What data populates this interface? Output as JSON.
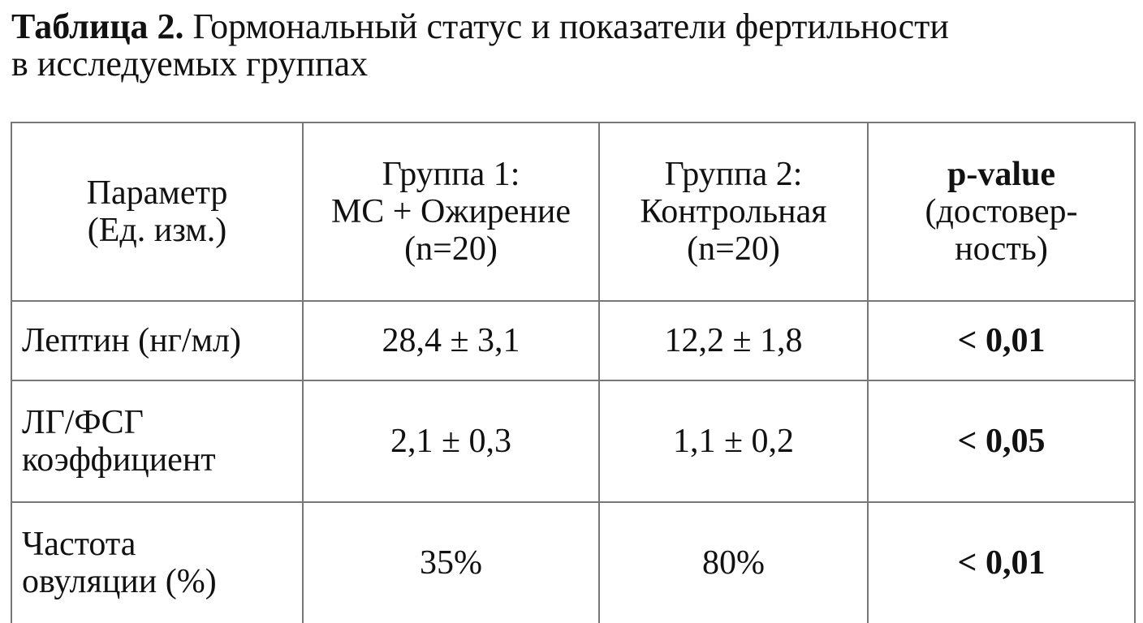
{
  "title": {
    "label": "Таблица 2.",
    "text": "Гормональный статус и показатели фертильности",
    "text_line2": "в исследуемых группах"
  },
  "table": {
    "header": [
      [
        "Параметр",
        "(Ед. изм.)"
      ],
      [
        "Группа 1:",
        "МС + Ожирение",
        "(n=20)"
      ],
      [
        "Группа 2:",
        "Контрольная",
        "(n=20)"
      ],
      [
        "p-value",
        "(достовер-",
        "ность)"
      ]
    ],
    "rows": [
      [
        [
          "Лептин (нг/мл)"
        ],
        "28,4 ± 3,1",
        "12,2 ± 1,8",
        "< 0,01"
      ],
      [
        [
          "ЛГ/ФСГ",
          "коэффициент"
        ],
        "2,1 ± 0,3",
        "1,1 ± 0,2",
        "< 0,05"
      ],
      [
        [
          "Частота",
          "овуляции (%)"
        ],
        "35%",
        "80%",
        "< 0,01"
      ]
    ]
  }
}
